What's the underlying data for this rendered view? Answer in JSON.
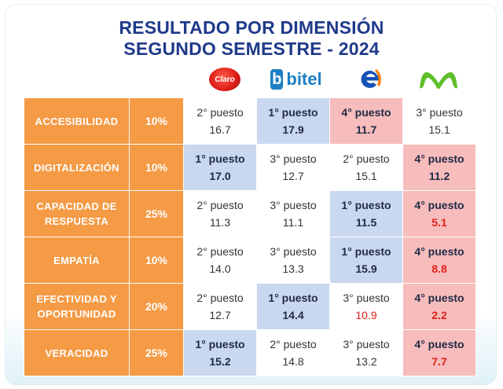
{
  "title": {
    "line1": "RESULTADO POR DIMENSIÓN",
    "line2": "SEGUNDO SEMESTRE - 2024"
  },
  "operators": [
    {
      "name": "Claro",
      "logo_text": "Claro",
      "icon": "claro-logo"
    },
    {
      "name": "bitel",
      "logo_text": "bitel",
      "icon": "bitel-logo"
    },
    {
      "name": "entel",
      "logo_text": "",
      "icon": "entel-logo"
    },
    {
      "name": "movistar",
      "logo_text": "",
      "icon": "movistar-logo"
    }
  ],
  "colors": {
    "title": "#1f3a8a",
    "dimension_bg": "#f59a45",
    "first_place_bg": "#c9d8ef",
    "last_place_bg": "#f7bcbc",
    "low_value_text": "#e0201a"
  },
  "rows": [
    {
      "dimension": "ACCESIBILIDAD",
      "weight": "10%",
      "cells": [
        {
          "place": "2° puesto",
          "value": "16.7",
          "status": "normal"
        },
        {
          "place": "1° puesto",
          "value": "17.9",
          "status": "first"
        },
        {
          "place": "4° puesto",
          "value": "11.7",
          "status": "last"
        },
        {
          "place": "3° puesto",
          "value": "15.1",
          "status": "normal"
        }
      ]
    },
    {
      "dimension": "DIGITALIZACIÓN",
      "weight": "10%",
      "cells": [
        {
          "place": "1° puesto",
          "value": "17.0",
          "status": "first"
        },
        {
          "place": "3° puesto",
          "value": "12.7",
          "status": "normal"
        },
        {
          "place": "2° puesto",
          "value": "15.1",
          "status": "normal"
        },
        {
          "place": "4° puesto",
          "value": "11.2",
          "status": "last"
        }
      ]
    },
    {
      "dimension": "CAPACIDAD DE RESPUESTA",
      "weight": "25%",
      "cells": [
        {
          "place": "2° puesto",
          "value": "11.3",
          "status": "normal"
        },
        {
          "place": "3° puesto",
          "value": "11.1",
          "status": "normal"
        },
        {
          "place": "1° puesto",
          "value": "11.5",
          "status": "first"
        },
        {
          "place": "4° puesto",
          "value": "5.1",
          "status": "last-red"
        }
      ]
    },
    {
      "dimension": "EMPATÍA",
      "weight": "10%",
      "cells": [
        {
          "place": "2° puesto",
          "value": "14.0",
          "status": "normal"
        },
        {
          "place": "3° puesto",
          "value": "13.3",
          "status": "normal"
        },
        {
          "place": "1° puesto",
          "value": "15.9",
          "status": "first"
        },
        {
          "place": "4° puesto",
          "value": "8.8",
          "status": "last-red"
        }
      ]
    },
    {
      "dimension": "EFECTIVIDAD Y OPORTUNIDAD",
      "weight": "20%",
      "cells": [
        {
          "place": "2° puesto",
          "value": "12.7",
          "status": "normal"
        },
        {
          "place": "1° puesto",
          "value": "14.4",
          "status": "first"
        },
        {
          "place": "3° puesto",
          "value": "10.9",
          "status": "normal-red"
        },
        {
          "place": "4° puesto",
          "value": "2.2",
          "status": "last-red"
        }
      ]
    },
    {
      "dimension": "VERACIDAD",
      "weight": "25%",
      "cells": [
        {
          "place": "1° puesto",
          "value": "15.2",
          "status": "first"
        },
        {
          "place": "2° puesto",
          "value": "14.8",
          "status": "normal"
        },
        {
          "place": "3° puesto",
          "value": "13.2",
          "status": "normal"
        },
        {
          "place": "4° puesto",
          "value": "7.7",
          "status": "last-red"
        }
      ]
    }
  ]
}
